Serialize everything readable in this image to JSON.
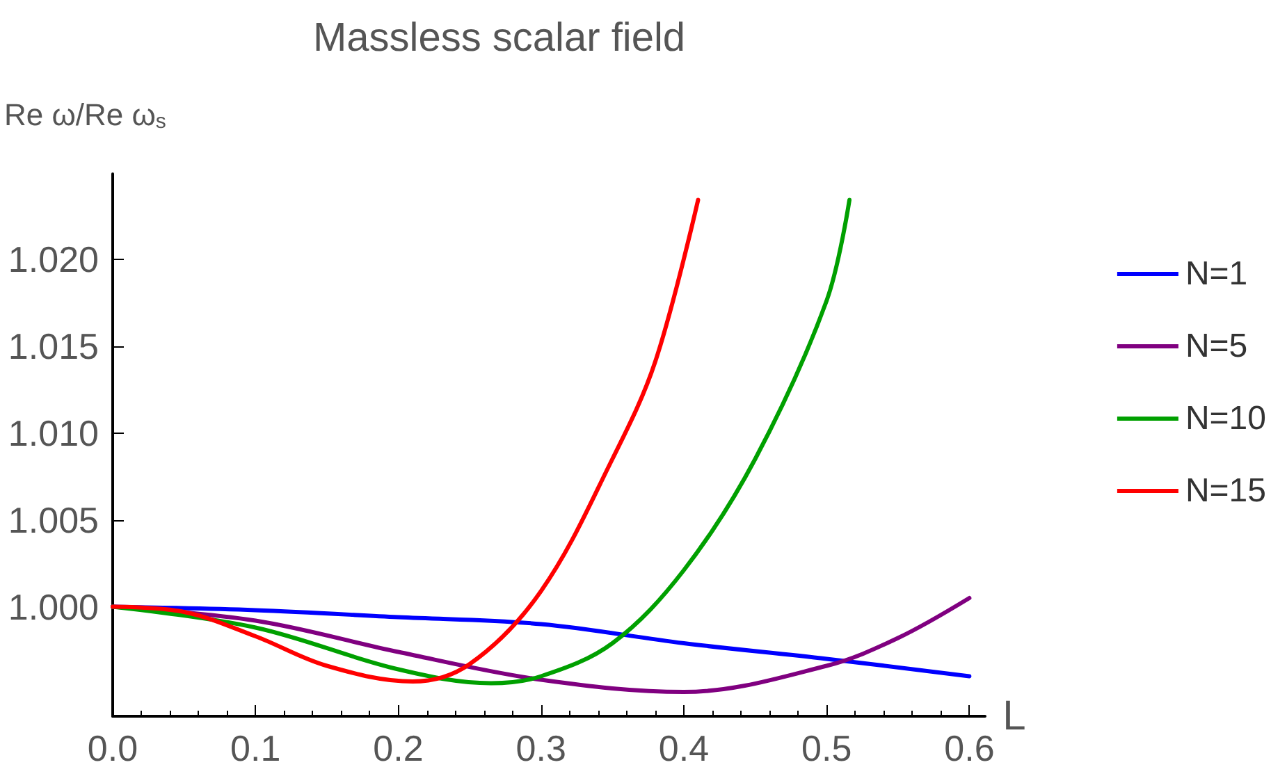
{
  "chart_data": {
    "type": "line",
    "title": "Massless scalar field",
    "xlabel": "L",
    "ylabel": "Re ω/Re ω$_{s}$",
    "xlim": [
      0,
      0.611
    ],
    "xticks": [
      {
        "value": 0,
        "label": "0.0"
      },
      0.1,
      0.2,
      0.3,
      0.4,
      0.5,
      0.6
    ],
    "ylim": [
      0.9937,
      1.0249
    ],
    "yticks": [
      {
        "value": 1,
        "label": "1.000"
      },
      1.005,
      {
        "value": 1.01,
        "label": "1.010"
      },
      1.015,
      {
        "value": 1.02,
        "label": "1.020"
      }
    ],
    "grid": false,
    "legend": "right",
    "marker": "none",
    "line_style": "solid",
    "series": [
      {
        "name": "N=1",
        "color": "#0000ff",
        "x": [
          0,
          0.1,
          0.2,
          0.3,
          0.4,
          0.5,
          0.6
        ],
        "values": [
          1.0,
          0.9998,
          0.9994,
          0.999,
          0.9979,
          0.997,
          0.996
        ]
      },
      {
        "name": "N=5",
        "color": "#800080",
        "x": [
          0,
          0.1,
          0.2,
          0.3,
          0.4,
          0.5,
          0.55,
          0.6
        ],
        "values": [
          1.0,
          0.9992,
          0.9974,
          0.9958,
          0.9951,
          0.9966,
          0.9982,
          1.0005
        ]
      },
      {
        "name": "N=10",
        "color": "#00a000",
        "x": [
          0,
          0.1,
          0.2,
          0.265,
          0.3,
          0.35,
          0.4,
          0.45,
          0.5,
          0.516
        ],
        "values": [
          1.0,
          0.9988,
          0.9964,
          0.9956,
          0.996,
          0.9979,
          1.0021,
          1.0085,
          1.0176,
          1.0234
        ]
      },
      {
        "name": "N=15",
        "color": "#ff0000",
        "x": [
          0,
          0.05,
          0.1,
          0.15,
          0.21,
          0.25,
          0.3,
          0.35,
          0.38,
          0.41
        ],
        "values": [
          1.0,
          0.9997,
          0.9983,
          0.9966,
          0.9957,
          0.9967,
          1.0009,
          1.0085,
          1.0141,
          1.0234
        ]
      }
    ]
  }
}
